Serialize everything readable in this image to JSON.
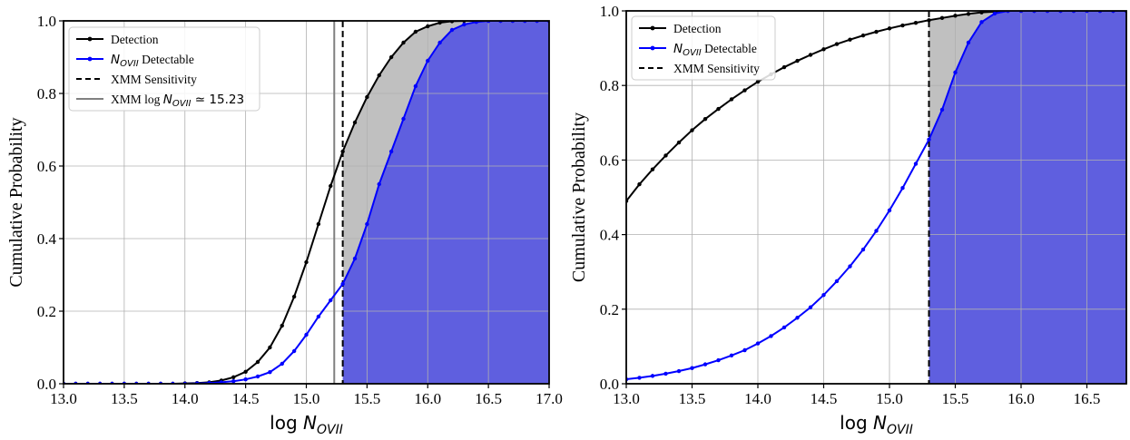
{
  "chart_data": [
    {
      "type": "line",
      "xlabel": "log N_{OVII}",
      "ylabel": "Cumulative Probability",
      "xlim": [
        13.0,
        17.0
      ],
      "ylim": [
        0.0,
        1.0
      ],
      "xticks": [
        "13.0",
        "13.5",
        "14.0",
        "14.5",
        "15.0",
        "15.5",
        "16.0",
        "16.5",
        "17.0"
      ],
      "yticks": [
        "0.0",
        "0.2",
        "0.4",
        "0.6",
        "0.8",
        "1.0"
      ],
      "grid": true,
      "legend_position": "top-left",
      "vlines": {
        "xmm_sensitivity": 15.3,
        "xmm_log_n": 15.23
      },
      "fill_regions": {
        "gray": "between Detection and N_OVII Detectable for x >= 15.3",
        "blue": "under N_OVII Detectable for x >= 15.3"
      },
      "legend": [
        {
          "label": "Detection",
          "key": "detection",
          "style": "line-marker"
        },
        {
          "label": " Detectable",
          "math": "N",
          "sub": "OVII",
          "key": "detectable",
          "style": "line-marker"
        },
        {
          "label": "XMM Sensitivity",
          "key": "sens",
          "style": "dashed"
        },
        {
          "label": "XMM log ",
          "math": "N",
          "sub": "OVII",
          "tail": " ≃ 15.23",
          "key": "xmmlog",
          "style": "gray-line"
        }
      ],
      "series": [
        {
          "name": "Detection",
          "key": "detection",
          "x": [
            13.0,
            13.1,
            13.2,
            13.3,
            13.4,
            13.5,
            13.6,
            13.7,
            13.8,
            13.9,
            14.0,
            14.1,
            14.2,
            14.3,
            14.4,
            14.5,
            14.6,
            14.7,
            14.8,
            14.9,
            15.0,
            15.1,
            15.2,
            15.3,
            15.4,
            15.5,
            15.6,
            15.7,
            15.8,
            15.9,
            16.0,
            16.1,
            16.2,
            16.3,
            16.4,
            16.5,
            16.6,
            16.7,
            16.8,
            16.9,
            17.0
          ],
          "y": [
            0.0,
            0.0,
            0.0,
            0.0,
            0.0,
            0.0,
            0.0,
            0.0,
            0.0,
            0.0,
            0.001,
            0.002,
            0.004,
            0.009,
            0.018,
            0.033,
            0.06,
            0.1,
            0.16,
            0.24,
            0.335,
            0.44,
            0.545,
            0.64,
            0.72,
            0.79,
            0.85,
            0.9,
            0.94,
            0.97,
            0.985,
            0.995,
            0.999,
            1.0,
            1.0,
            1.0,
            1.0,
            1.0,
            1.0,
            1.0,
            1.0
          ]
        },
        {
          "name": "N_OVII Detectable",
          "key": "detectable",
          "x": [
            13.0,
            13.1,
            13.2,
            13.3,
            13.4,
            13.5,
            13.6,
            13.7,
            13.8,
            13.9,
            14.0,
            14.1,
            14.2,
            14.3,
            14.4,
            14.5,
            14.6,
            14.7,
            14.8,
            14.9,
            15.0,
            15.1,
            15.2,
            15.3,
            15.4,
            15.5,
            15.6,
            15.7,
            15.8,
            15.9,
            16.0,
            16.1,
            16.2,
            16.3,
            16.4,
            16.5,
            16.6,
            16.7,
            16.8,
            16.9,
            17.0
          ],
          "y": [
            0.0,
            0.0,
            0.0,
            0.0,
            0.0,
            0.0,
            0.0,
            0.0,
            0.0,
            0.0,
            0.0,
            0.001,
            0.002,
            0.004,
            0.007,
            0.012,
            0.02,
            0.032,
            0.055,
            0.09,
            0.135,
            0.185,
            0.23,
            0.275,
            0.345,
            0.44,
            0.55,
            0.64,
            0.73,
            0.82,
            0.89,
            0.94,
            0.975,
            0.99,
            0.997,
            1.0,
            1.0,
            1.0,
            1.0,
            1.0,
            1.0
          ]
        }
      ]
    },
    {
      "type": "line",
      "xlabel": "log N_{OVII}",
      "ylabel": "Cumulative Probability",
      "xlim": [
        13.0,
        16.8
      ],
      "ylim": [
        0.0,
        1.0
      ],
      "xticks": [
        "13.0",
        "13.5",
        "14.0",
        "14.5",
        "15.0",
        "15.5",
        "16.0",
        "16.5"
      ],
      "yticks": [
        "0.0",
        "0.2",
        "0.4",
        "0.6",
        "0.8",
        "1.0"
      ],
      "grid": true,
      "legend_position": "top-left",
      "vlines": {
        "xmm_sensitivity": 15.3
      },
      "fill_regions": {
        "gray": "between Detection and N_OVII Detectable for x >= 15.3",
        "blue": "under N_OVII Detectable for x >= 15.3"
      },
      "legend": [
        {
          "label": "Detection",
          "key": "detection",
          "style": "line-marker"
        },
        {
          "label": " Detectable",
          "math": "N",
          "sub": "OVII",
          "key": "detectable",
          "style": "line-marker"
        },
        {
          "label": "XMM Sensitivity",
          "key": "sens",
          "style": "dashed"
        }
      ],
      "series": [
        {
          "name": "Detection",
          "key": "detection",
          "x": [
            13.0,
            13.1,
            13.2,
            13.3,
            13.4,
            13.5,
            13.6,
            13.7,
            13.8,
            13.9,
            14.0,
            14.1,
            14.2,
            14.3,
            14.4,
            14.5,
            14.6,
            14.7,
            14.8,
            14.9,
            15.0,
            15.1,
            15.2,
            15.3,
            15.4,
            15.5,
            15.6,
            15.7,
            15.8,
            15.9,
            16.0,
            16.1,
            16.2,
            16.3,
            16.4,
            16.5,
            16.6,
            16.7,
            16.8
          ],
          "y": [
            0.49,
            0.535,
            0.575,
            0.612,
            0.647,
            0.68,
            0.71,
            0.737,
            0.763,
            0.787,
            0.81,
            0.83,
            0.849,
            0.866,
            0.882,
            0.897,
            0.911,
            0.923,
            0.934,
            0.944,
            0.953,
            0.961,
            0.968,
            0.975,
            0.981,
            0.987,
            0.992,
            0.996,
            0.998,
            1.0,
            1.0,
            1.0,
            1.0,
            1.0,
            1.0,
            1.0,
            1.0,
            1.0,
            1.0
          ]
        },
        {
          "name": "N_OVII Detectable",
          "key": "detectable",
          "x": [
            13.0,
            13.1,
            13.2,
            13.3,
            13.4,
            13.5,
            13.6,
            13.7,
            13.8,
            13.9,
            14.0,
            14.1,
            14.2,
            14.3,
            14.4,
            14.5,
            14.6,
            14.7,
            14.8,
            14.9,
            15.0,
            15.1,
            15.2,
            15.3,
            15.4,
            15.5,
            15.6,
            15.7,
            15.8,
            15.9,
            16.0,
            16.1,
            16.2,
            16.3,
            16.4,
            16.5,
            16.6,
            16.7,
            16.8
          ],
          "y": [
            0.012,
            0.016,
            0.021,
            0.027,
            0.034,
            0.042,
            0.052,
            0.063,
            0.076,
            0.09,
            0.108,
            0.128,
            0.151,
            0.177,
            0.205,
            0.238,
            0.275,
            0.315,
            0.36,
            0.41,
            0.465,
            0.525,
            0.59,
            0.655,
            0.735,
            0.835,
            0.915,
            0.97,
            0.993,
            1.0,
            1.0,
            1.0,
            1.0,
            1.0,
            1.0,
            1.0,
            1.0,
            1.0,
            1.0
          ]
        }
      ]
    }
  ],
  "colors": {
    "detection": "#000000",
    "detectable": "#0000ff",
    "fill_blue": "#5f5fdf",
    "fill_gray": "#c0c0c0",
    "grid": "#b0b0b0",
    "xmm_log_line": "#808080"
  }
}
